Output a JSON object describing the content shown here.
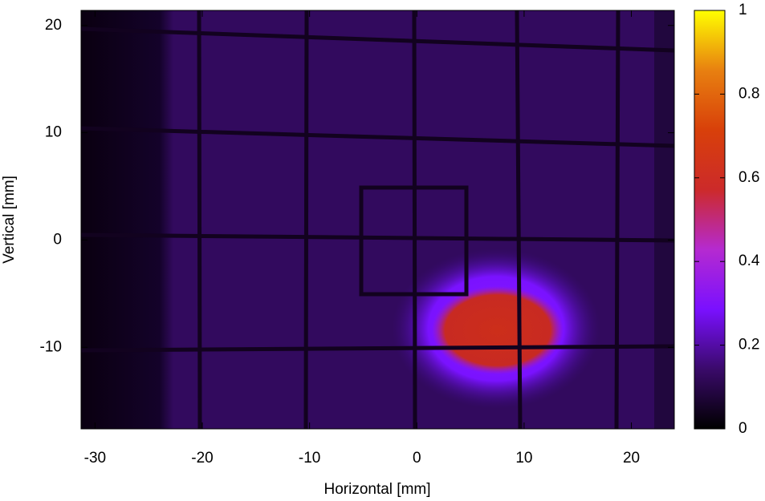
{
  "chart_data": {
    "type": "heatmap",
    "x_label": "Horizontal [mm]",
    "y_label": "Vertical [mm]",
    "xlim": [
      -31.3,
      24
    ],
    "xticks": [
      -30,
      -20,
      -10,
      0,
      10,
      20
    ],
    "ylim": [
      -17.6,
      21.4
    ],
    "yticks": [
      -10,
      0,
      10,
      20
    ],
    "colorbar": {
      "lim": [
        0,
        1
      ],
      "ticks": [
        0,
        0.2,
        0.4,
        0.6,
        0.8,
        1
      ],
      "colors": [
        "#000000",
        "#3a0a6a",
        "#7a10ff",
        "#b52ad0",
        "#cc2a2a",
        "#d8400a",
        "#e88010",
        "#ffff00"
      ]
    }
  }
}
